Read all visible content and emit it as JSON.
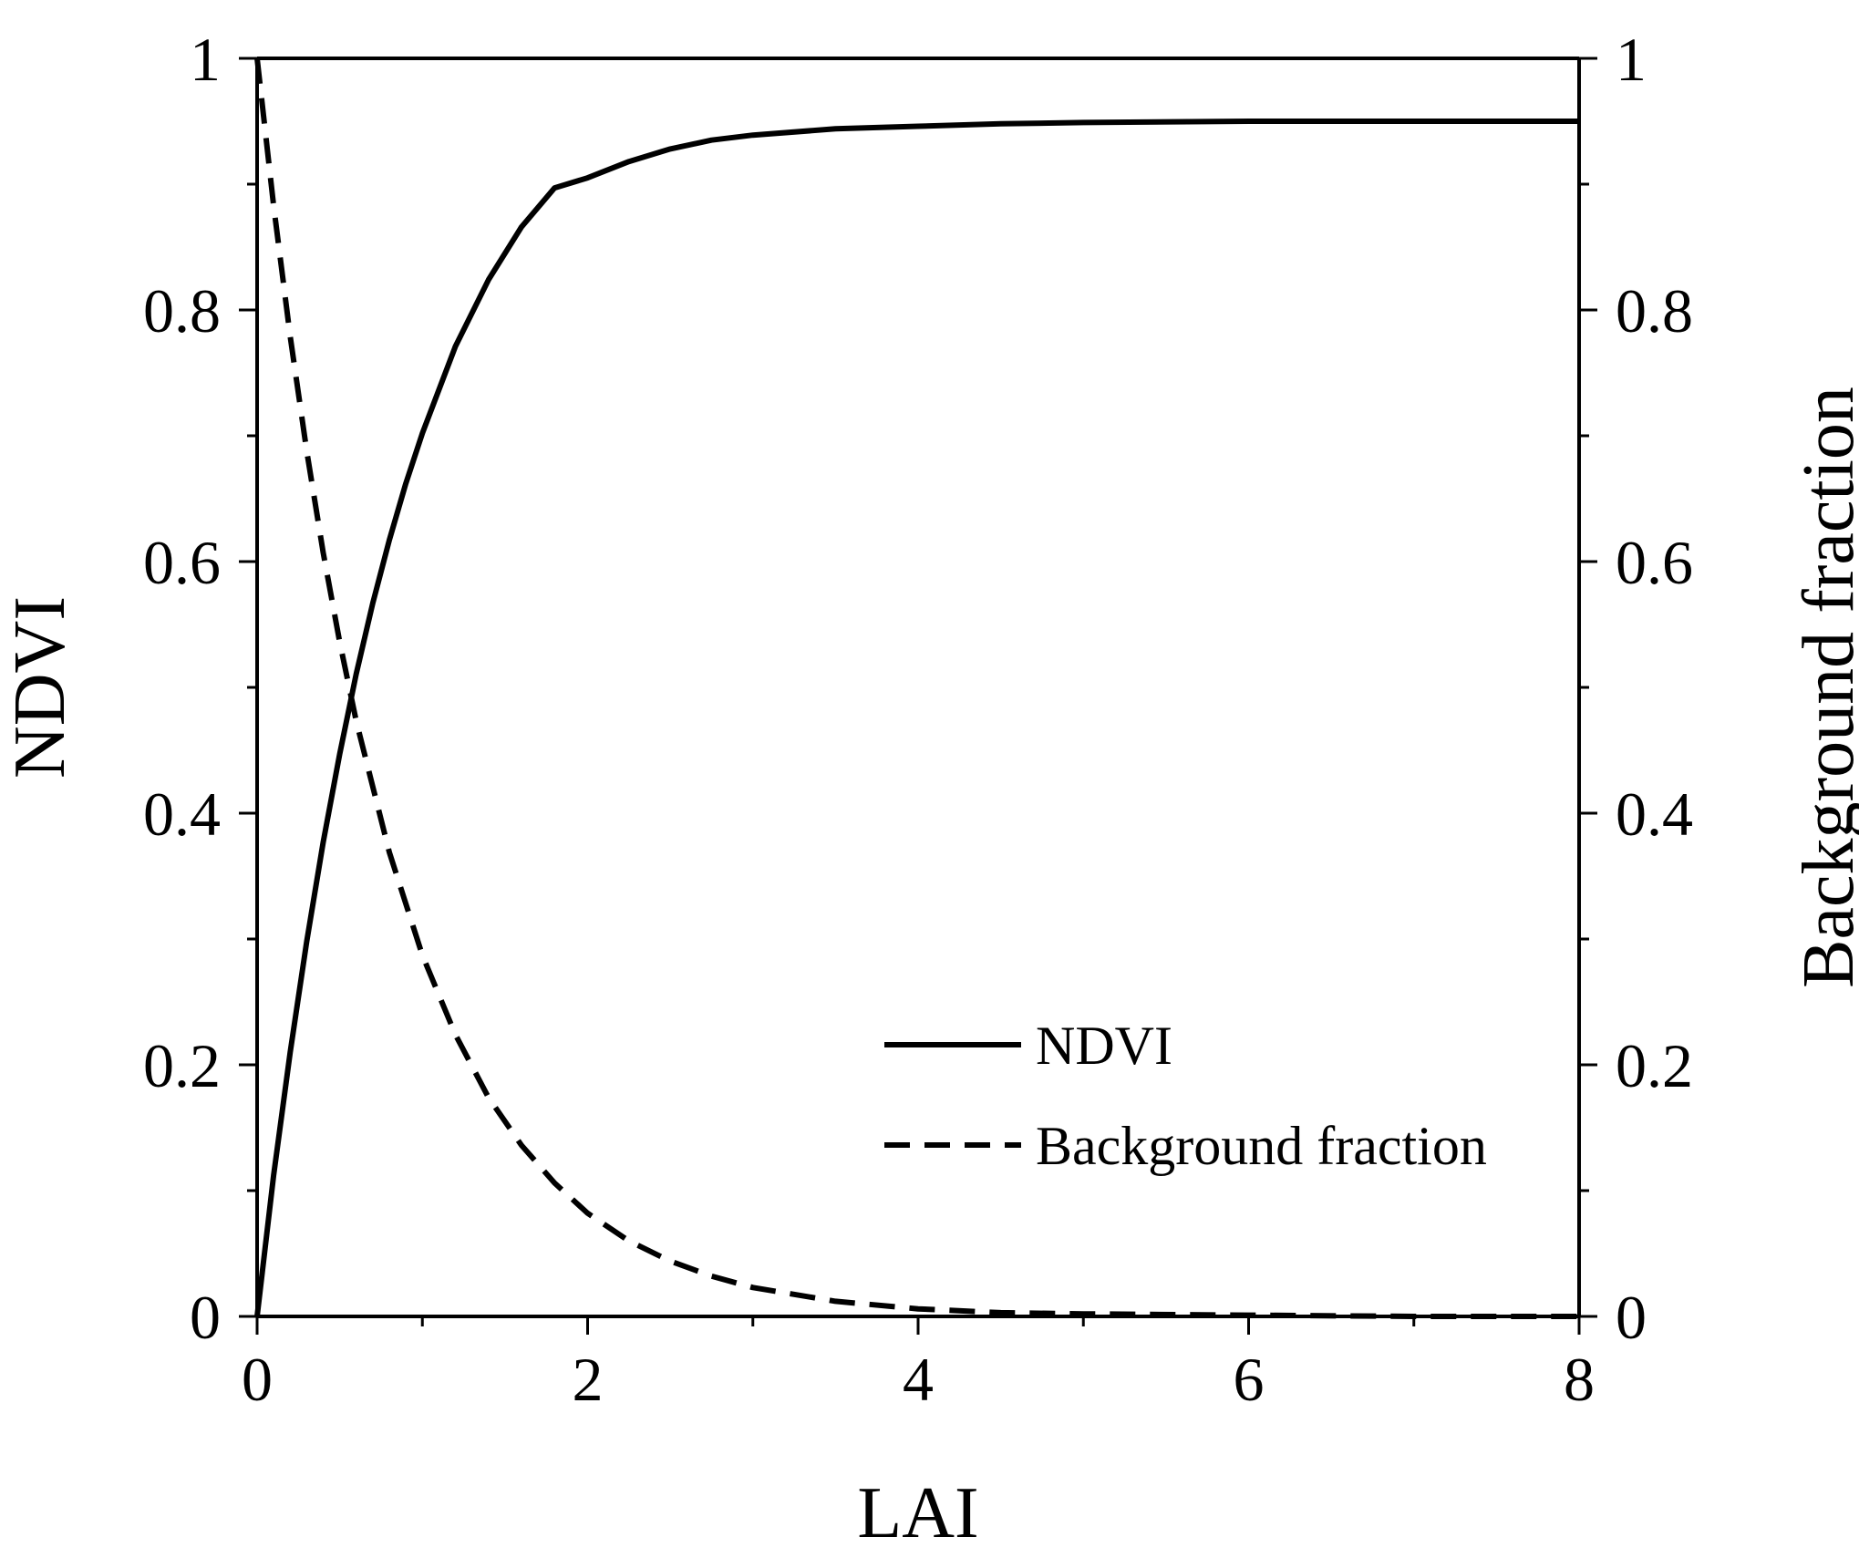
{
  "chart_data": {
    "type": "line",
    "title": "",
    "xlabel": "LAI",
    "ylabel": "NDVI",
    "y2label": "Background fraction",
    "xlim": [
      0,
      8
    ],
    "ylim": [
      0,
      1
    ],
    "y2lim": [
      0,
      1
    ],
    "x_ticks": [
      0,
      2,
      4,
      6,
      8
    ],
    "x_tick_labels": [
      "0",
      "2",
      "4",
      "6",
      "8"
    ],
    "x_minor_ticks": [
      1,
      3,
      5,
      7
    ],
    "y_ticks": [
      0,
      0.2,
      0.4,
      0.6,
      0.8,
      1
    ],
    "y_tick_labels": [
      "0",
      "0.2",
      "0.4",
      "0.6",
      "0.8",
      "1"
    ],
    "y2_ticks": [
      0,
      0.2,
      0.4,
      0.6,
      0.8,
      1
    ],
    "y2_tick_labels": [
      "0",
      "0.2",
      "0.4",
      "0.6",
      "0.8",
      "1"
    ],
    "y_minor_ticks": [
      0.1,
      0.3,
      0.5,
      0.7,
      0.9
    ],
    "grid": false,
    "legend_position": "bottom-right",
    "series": [
      {
        "name": "NDVI",
        "axis": "left",
        "line_style": "solid",
        "color": "#000000",
        "x": [
          0,
          0.1,
          0.2,
          0.3,
          0.4,
          0.5,
          0.6,
          0.7,
          0.8,
          0.9,
          1.0,
          1.2,
          1.4,
          1.6,
          1.8,
          2.0,
          2.25,
          2.5,
          2.75,
          3.0,
          3.5,
          4.0,
          4.5,
          5.0,
          6.0,
          7.0,
          8.0
        ],
        "y": [
          0.0,
          0.112,
          0.21,
          0.298,
          0.377,
          0.447,
          0.511,
          0.567,
          0.617,
          0.662,
          0.702,
          0.771,
          0.824,
          0.866,
          0.897,
          0.905,
          0.918,
          0.928,
          0.935,
          0.939,
          0.944,
          0.946,
          0.948,
          0.949,
          0.95,
          0.95,
          0.95
        ]
      },
      {
        "name": "Background fraction",
        "axis": "right",
        "line_style": "dashed",
        "color": "#000000",
        "x": [
          0,
          0.1,
          0.2,
          0.3,
          0.4,
          0.5,
          0.6,
          0.8,
          1.0,
          1.2,
          1.4,
          1.6,
          1.8,
          2.0,
          2.25,
          2.5,
          2.75,
          3.0,
          3.5,
          4.0,
          4.5,
          5.0,
          6.0,
          7.0,
          8.0
        ],
        "y": [
          1.0,
          0.883,
          0.779,
          0.688,
          0.607,
          0.536,
          0.473,
          0.369,
          0.287,
          0.224,
          0.174,
          0.136,
          0.106,
          0.082,
          0.06,
          0.044,
          0.032,
          0.023,
          0.012,
          0.006,
          0.003,
          0.002,
          0.001,
          0.0,
          0.0
        ]
      }
    ]
  }
}
